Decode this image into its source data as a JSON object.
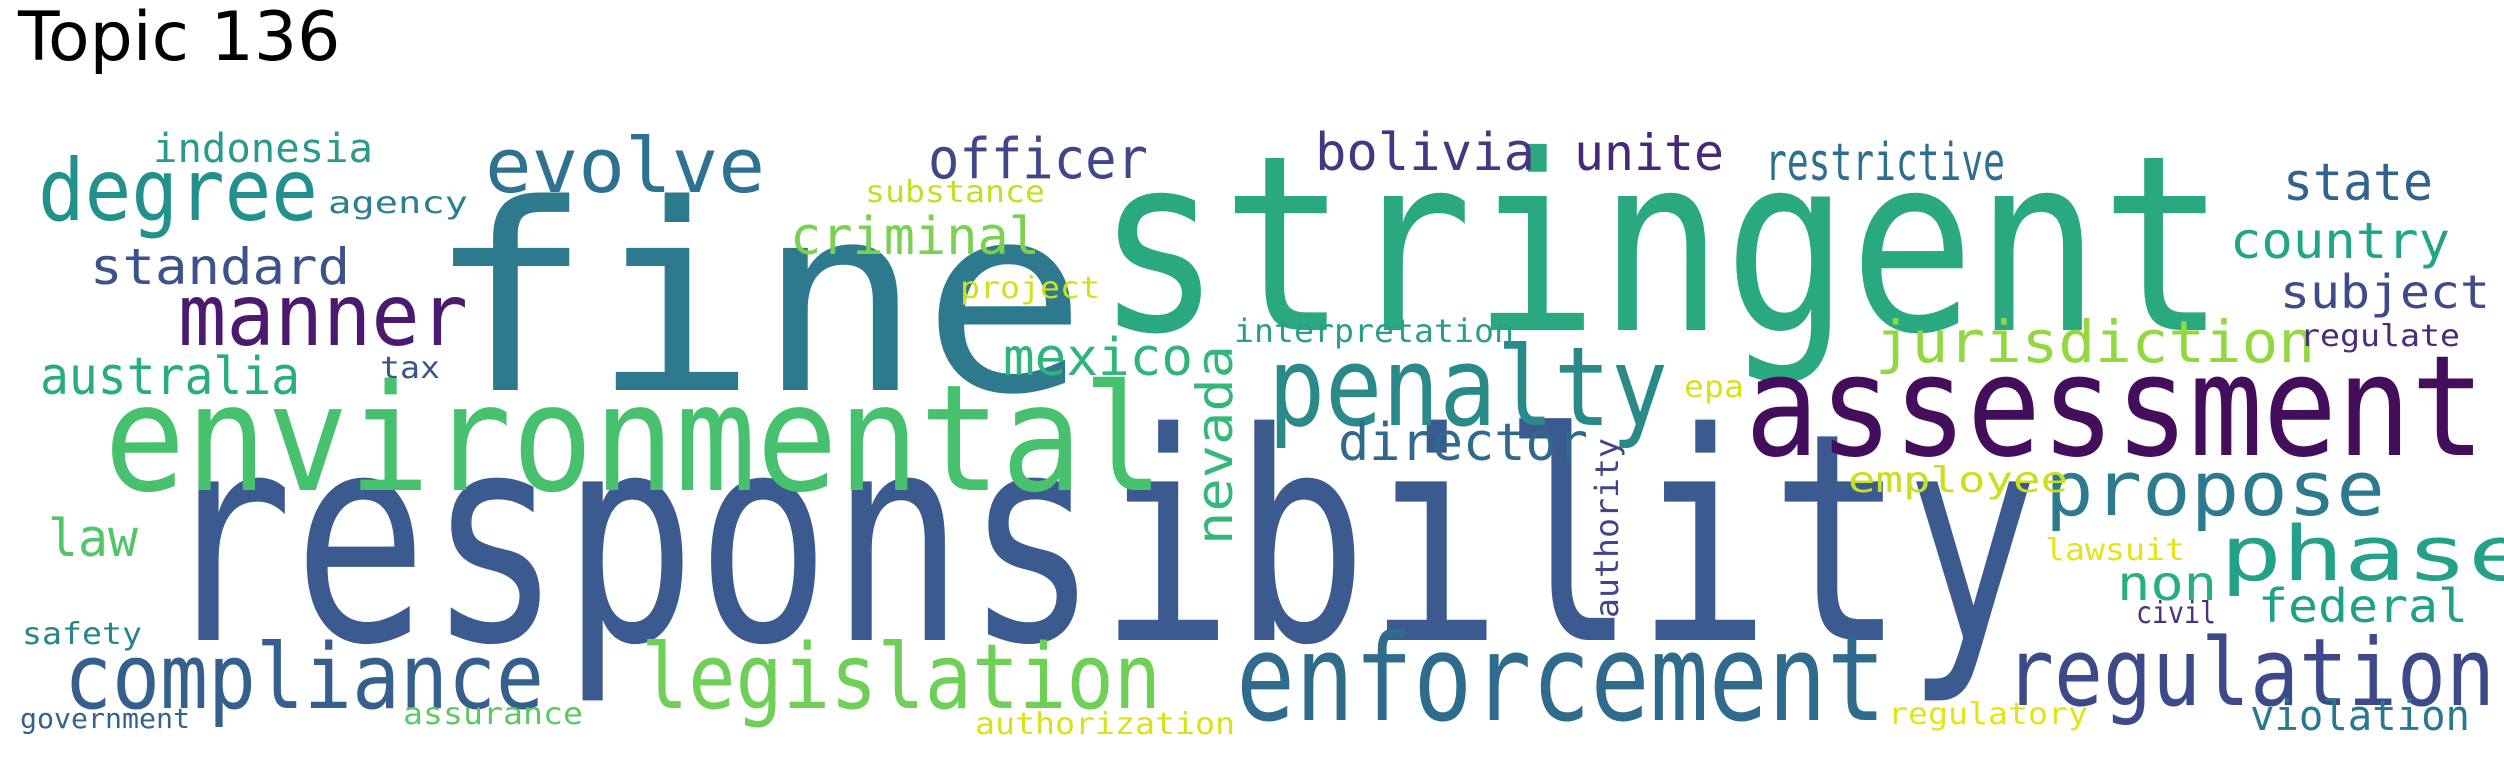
{
  "title": "Topic 136",
  "words": [
    {
      "text": "responsibility",
      "color": "#3b5a8f",
      "size": 290,
      "vertical": false
    },
    {
      "text": "fine",
      "color": "#2d7a8f",
      "size": 260,
      "vertical": false
    },
    {
      "text": "stringent",
      "color": "#2aa880",
      "size": 245,
      "vertical": false
    },
    {
      "text": "environmental",
      "color": "#47c16e",
      "size": 148,
      "vertical": false
    },
    {
      "text": "assessment",
      "color": "#440e5c",
      "size": 140,
      "vertical": false
    },
    {
      "text": "enforcement",
      "color": "#2f6b8d",
      "size": 120,
      "vertical": false
    },
    {
      "text": "penalty",
      "color": "#2a8a8a",
      "size": 110,
      "vertical": false
    },
    {
      "text": "regulation",
      "color": "#3d4a89",
      "size": 94,
      "vertical": false
    },
    {
      "text": "compliance",
      "color": "#355f8d",
      "size": 90,
      "vertical": false
    },
    {
      "text": "legislation",
      "color": "#70cf57",
      "size": 90,
      "vertical": false
    },
    {
      "text": "manner",
      "color": "#4b1a6e",
      "size": 86,
      "vertical": false
    },
    {
      "text": "degree",
      "color": "#22908c",
      "size": 86,
      "vertical": false
    },
    {
      "text": "propose",
      "color": "#2d7a8f",
      "size": 76,
      "vertical": false
    },
    {
      "text": "evolve",
      "color": "#2e7191",
      "size": 76,
      "vertical": false
    },
    {
      "text": "phase",
      "color": "#25a089",
      "size": 76,
      "vertical": false
    },
    {
      "text": "jurisdiction",
      "color": "#93d741",
      "size": 58,
      "vertical": false
    },
    {
      "text": "nevada",
      "color": "#35b779",
      "size": 50,
      "vertical": true
    },
    {
      "text": "officer",
      "color": "#3f4789",
      "size": 56,
      "vertical": false
    },
    {
      "text": "bolivia",
      "color": "#453781",
      "size": 52,
      "vertical": false
    },
    {
      "text": "unite",
      "color": "#482878",
      "size": 50,
      "vertical": false
    },
    {
      "text": "restrictive",
      "color": "#2e6e8e",
      "size": 52,
      "vertical": false
    },
    {
      "text": "director",
      "color": "#31688e",
      "size": 52,
      "vertical": false
    },
    {
      "text": "mexico",
      "color": "#2fb47c",
      "size": 52,
      "vertical": false
    },
    {
      "text": "criminal",
      "color": "#7ad151",
      "size": 52,
      "vertical": false
    },
    {
      "text": "standard",
      "color": "#3b528b",
      "size": 50,
      "vertical": false
    },
    {
      "text": "australia",
      "color": "#27ad81",
      "size": 52,
      "vertical": false
    },
    {
      "text": "state",
      "color": "#33638d",
      "size": 52,
      "vertical": false
    },
    {
      "text": "country",
      "color": "#21a685",
      "size": 50,
      "vertical": false
    },
    {
      "text": "subject",
      "color": "#3e4c8a",
      "size": 46,
      "vertical": false
    },
    {
      "text": "federal",
      "color": "#1fa088",
      "size": 46,
      "vertical": false
    },
    {
      "text": "law",
      "color": "#52c569",
      "size": 52,
      "vertical": false
    },
    {
      "text": "non",
      "color": "#29af7f",
      "size": 48,
      "vertical": false
    },
    {
      "text": "violation",
      "color": "#2a788e",
      "size": 42,
      "vertical": false
    },
    {
      "text": "indonesia",
      "color": "#2a9b8a",
      "size": 40,
      "vertical": false
    },
    {
      "text": "employee",
      "color": "#c8e020",
      "size": 36,
      "vertical": false
    },
    {
      "text": "authority",
      "color": "#414487",
      "size": 32,
      "vertical": true
    },
    {
      "text": "interpretation",
      "color": "#2c9d8b",
      "size": 32,
      "vertical": false
    },
    {
      "text": "agency",
      "color": "#2b7f8e",
      "size": 30,
      "vertical": false
    },
    {
      "text": "substance",
      "color": "#c2df23",
      "size": 30,
      "vertical": false
    },
    {
      "text": "project",
      "color": "#d0e11c",
      "size": 30,
      "vertical": false
    },
    {
      "text": "regulate",
      "color": "#472d7b",
      "size": 30,
      "vertical": false
    },
    {
      "text": "tax",
      "color": "#39568c",
      "size": 30,
      "vertical": false
    },
    {
      "text": "epa",
      "color": "#d8e219",
      "size": 30,
      "vertical": false
    },
    {
      "text": "lawsuit",
      "color": "#e5e419",
      "size": 30,
      "vertical": false
    },
    {
      "text": "civil",
      "color": "#46327e",
      "size": 30,
      "vertical": false
    },
    {
      "text": "safety",
      "color": "#25848e",
      "size": 30,
      "vertical": false
    },
    {
      "text": "government",
      "color": "#33638d",
      "size": 28,
      "vertical": false
    },
    {
      "text": "assurance",
      "color": "#5ec962",
      "size": 30,
      "vertical": false
    },
    {
      "text": "authorization",
      "color": "#d8e219",
      "size": 30,
      "vertical": false
    },
    {
      "text": "regulatory",
      "color": "#e2e418",
      "size": 30,
      "vertical": false
    }
  ]
}
